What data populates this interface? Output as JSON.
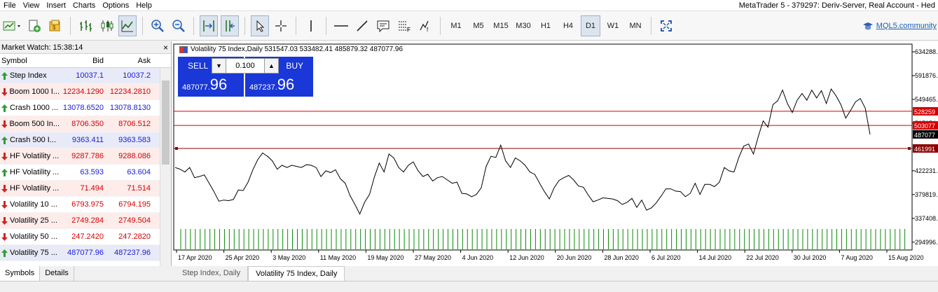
{
  "menu": [
    "File",
    "View",
    "Insert",
    "Charts",
    "Options",
    "Help"
  ],
  "window_title": "MetaTrader 5 - 379297: Deriv-Server, Real Account - Hed",
  "toolbar": {
    "timeframes": [
      "M1",
      "M5",
      "M15",
      "M30",
      "H1",
      "H4",
      "D1",
      "W1",
      "MN"
    ],
    "active_timeframe": "D1",
    "mql5_link": "MQL5.community"
  },
  "market_watch": {
    "title": "Market Watch: 15:38:14",
    "columns": {
      "symbol": "Symbol",
      "bid": "Bid",
      "ask": "Ask"
    },
    "rows": [
      {
        "symbol": "Step Index",
        "bid": "10037.1",
        "ask": "10037.2",
        "dir": "up",
        "color": "#1a1ad8",
        "bg": "#e8eaf8"
      },
      {
        "symbol": "Boom 1000 I...",
        "bid": "12234.1290",
        "ask": "12234.2810",
        "dir": "down",
        "color": "#d40000",
        "bg": "#fdecea"
      },
      {
        "symbol": "Crash 1000 ...",
        "bid": "13078.6520",
        "ask": "13078.8130",
        "dir": "up",
        "color": "#1a1ad8",
        "bg": "#ffffff"
      },
      {
        "symbol": "Boom 500 In...",
        "bid": "8706.350",
        "ask": "8706.512",
        "dir": "down",
        "color": "#d40000",
        "bg": "#fdecea"
      },
      {
        "symbol": "Crash 500 I...",
        "bid": "9363.411",
        "ask": "9363.583",
        "dir": "up",
        "color": "#1a1ad8",
        "bg": "#e8eaf8"
      },
      {
        "symbol": "HF Volatility ...",
        "bid": "9287.786",
        "ask": "9288.086",
        "dir": "down",
        "color": "#d40000",
        "bg": "#fdecea"
      },
      {
        "symbol": "HF Volatility ...",
        "bid": "63.593",
        "ask": "63.604",
        "dir": "up",
        "color": "#1a1ad8",
        "bg": "#ffffff"
      },
      {
        "symbol": "HF Volatility ...",
        "bid": "71.494",
        "ask": "71.514",
        "dir": "down",
        "color": "#d40000",
        "bg": "#fdecea"
      },
      {
        "symbol": "Volatility 10 ...",
        "bid": "6793.975",
        "ask": "6794.195",
        "dir": "down",
        "color": "#d40000",
        "bg": "#ffffff"
      },
      {
        "symbol": "Volatility 25 ...",
        "bid": "2749.284",
        "ask": "2749.504",
        "dir": "down",
        "color": "#d40000",
        "bg": "#fdecea"
      },
      {
        "symbol": "Volatility 50 ...",
        "bid": "247.2420",
        "ask": "247.2820",
        "dir": "down",
        "color": "#d40000",
        "bg": "#ffffff"
      },
      {
        "symbol": "Volatility 75 ...",
        "bid": "487077.96",
        "ask": "487237.96",
        "dir": "up",
        "color": "#1a1ad8",
        "bg": "#e8eaf8"
      }
    ],
    "tabs": [
      "Symbols",
      "Details"
    ]
  },
  "chart": {
    "header": "Volatility 75 Index,Daily  531547.03 533482.41 485879.32 487077.96",
    "trade_panel": {
      "sell_label": "SELL",
      "buy_label": "BUY",
      "volume": "0.100",
      "sell_price_small": "487077.",
      "sell_price_big": "96",
      "buy_price_small": "487237.",
      "buy_price_big": "96"
    },
    "tabs": [
      "Step Index, Daily",
      "Volatility 75 Index, Daily"
    ],
    "active_tab": 1
  },
  "chart_data": {
    "type": "line",
    "price_axis_labels": [
      "634288.",
      "591876.",
      "549465.",
      "507054.",
      "422231.",
      "379819.",
      "337408.",
      "294996."
    ],
    "price_axis_values": [
      634288,
      591876,
      549465,
      507054,
      422231,
      379819,
      337408,
      294996
    ],
    "ylim": [
      281000,
      648000
    ],
    "date_labels": [
      "17 Apr 2020",
      "25 Apr 2020",
      "3 May 2020",
      "11 May 2020",
      "19 May 2020",
      "27 May 2020",
      "4 Jun 2020",
      "12 Jun 2020",
      "20 Jun 2020",
      "28 Jun 2020",
      "6 Jul 2020",
      "14 Jul 2020",
      "22 Jul 2020",
      "30 Jul 2020",
      "7 Aug 2020",
      "15 Aug 2020"
    ],
    "h_lines": [
      {
        "label": "528259",
        "value": 528259,
        "color": "#d40000"
      },
      {
        "label": "503077",
        "value": 503077,
        "color": "#d40000"
      },
      {
        "label": "461991",
        "value": 461991,
        "color": "#8b0000"
      }
    ],
    "current_price": {
      "label": "487077",
      "value": 487077
    },
    "values": [
      428000,
      425000,
      420000,
      428000,
      410000,
      412000,
      415000,
      400000,
      385000,
      368000,
      370000,
      369000,
      371000,
      388000,
      387000,
      402000,
      424000,
      442000,
      454000,
      448000,
      440000,
      425000,
      432000,
      428000,
      432000,
      430000,
      428000,
      433000,
      432000,
      428000,
      412000,
      422000,
      419000,
      424000,
      408000,
      400000,
      378000,
      362000,
      345000,
      366000,
      380000,
      411000,
      436000,
      420000,
      452000,
      445000,
      428000,
      420000,
      432000,
      438000,
      422000,
      412000,
      416000,
      404000,
      410000,
      412000,
      406000,
      400000,
      402000,
      382000,
      381000,
      376000,
      380000,
      392000,
      430000,
      448000,
      446000,
      468000,
      440000,
      428000,
      445000,
      440000,
      432000,
      420000,
      416000,
      400000,
      385000,
      372000,
      392000,
      405000,
      410000,
      414000,
      406000,
      395000,
      393000,
      379000,
      367000,
      370000,
      374000,
      373000,
      372000,
      369000,
      362000,
      366000,
      373000,
      357000,
      370000,
      352000,
      356000,
      365000,
      377000,
      390000,
      390000,
      386000,
      385000,
      376000,
      382000,
      400000,
      380000,
      398000,
      398000,
      394000,
      402000,
      428000,
      422000,
      420000,
      446000,
      466000,
      470000,
      452000,
      483000,
      511000,
      500000,
      540000,
      547000,
      566000,
      542000,
      526000,
      548000,
      560000,
      548000,
      566000,
      552000,
      565000,
      542000,
      568000,
      556000,
      540000,
      516000,
      530000,
      545000,
      551000,
      534000,
      487000
    ],
    "volume_bars": 150
  }
}
